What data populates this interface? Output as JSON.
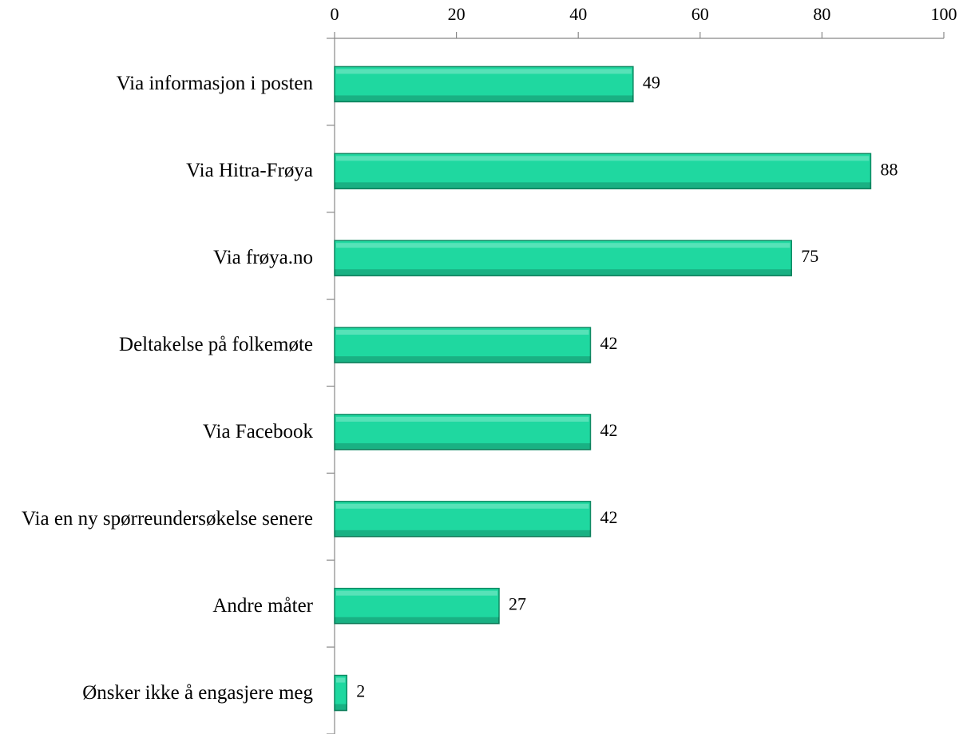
{
  "chart_data": {
    "type": "bar",
    "orientation": "horizontal",
    "categories": [
      "Via informasjon i posten",
      "Via Hitra-Frøya",
      "Via frøya.no",
      "Deltakelse på folkemøte",
      "Via Facebook",
      "Via en ny spørreundersøkelse senere",
      "Andre måter",
      "Ønsker ikke å engasjere meg"
    ],
    "values": [
      49,
      88,
      75,
      42,
      42,
      42,
      27,
      2
    ],
    "color": "#1fd8a0",
    "xlim": [
      0,
      100
    ],
    "xticks": [
      0,
      20,
      40,
      60,
      80,
      100
    ]
  }
}
